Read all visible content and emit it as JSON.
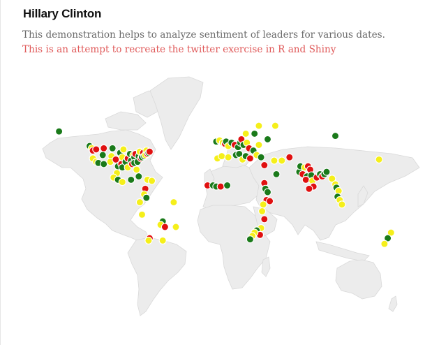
{
  "header": {
    "title": "Hillary Clinton",
    "description": "This demonstration helps to analyze sentiment of leaders for various dates.",
    "note": "This is an attempt to recreate the twitter exercise in R and Shiny"
  },
  "colors": {
    "positive": "#1a7a1a",
    "negative": "#e01010",
    "neutral": "#f5ef1a",
    "land": "#ececec",
    "note_text": "#e05a5a"
  },
  "map_data": {
    "projection": "equirectangular",
    "markers": [
      {
        "lon": -153,
        "lat": 62,
        "sentiment": "positive"
      },
      {
        "lon": -125,
        "lat": 49,
        "sentiment": "positive"
      },
      {
        "lon": -123,
        "lat": 47,
        "sentiment": "neutral"
      },
      {
        "lon": -122,
        "lat": 45,
        "sentiment": "negative"
      },
      {
        "lon": -119,
        "lat": 46,
        "sentiment": "negative"
      },
      {
        "lon": -122,
        "lat": 38,
        "sentiment": "neutral"
      },
      {
        "lon": -119,
        "lat": 35,
        "sentiment": "neutral"
      },
      {
        "lon": -117,
        "lat": 34,
        "sentiment": "positive"
      },
      {
        "lon": -113,
        "lat": 41,
        "sentiment": "positive"
      },
      {
        "lon": -112,
        "lat": 33,
        "sentiment": "positive"
      },
      {
        "lon": -112,
        "lat": 47,
        "sentiment": "negative"
      },
      {
        "lon": -105,
        "lat": 40,
        "sentiment": "neutral"
      },
      {
        "lon": -104,
        "lat": 47,
        "sentiment": "positive"
      },
      {
        "lon": -106,
        "lat": 35,
        "sentiment": "neutral"
      },
      {
        "lon": -101,
        "lat": 37,
        "sentiment": "negative"
      },
      {
        "lon": -99,
        "lat": 31,
        "sentiment": "positive"
      },
      {
        "lon": -97,
        "lat": 43,
        "sentiment": "positive"
      },
      {
        "lon": -95,
        "lat": 39,
        "sentiment": "neutral"
      },
      {
        "lon": -94,
        "lat": 46,
        "sentiment": "neutral"
      },
      {
        "lon": -96,
        "lat": 33,
        "sentiment": "negative"
      },
      {
        "lon": -95,
        "lat": 30,
        "sentiment": "positive"
      },
      {
        "lon": -92,
        "lat": 35,
        "sentiment": "positive"
      },
      {
        "lon": -90,
        "lat": 38,
        "sentiment": "negative"
      },
      {
        "lon": -90,
        "lat": 30,
        "sentiment": "neutral"
      },
      {
        "lon": -88,
        "lat": 42,
        "sentiment": "positive"
      },
      {
        "lon": -87,
        "lat": 36,
        "sentiment": "positive"
      },
      {
        "lon": -86,
        "lat": 33,
        "sentiment": "negative"
      },
      {
        "lon": -85,
        "lat": 41,
        "sentiment": "neutral"
      },
      {
        "lon": -84,
        "lat": 39,
        "sentiment": "positive"
      },
      {
        "lon": -84,
        "lat": 34,
        "sentiment": "positive"
      },
      {
        "lon": -83,
        "lat": 42,
        "sentiment": "negative"
      },
      {
        "lon": -82,
        "lat": 28,
        "sentiment": "neutral"
      },
      {
        "lon": -81,
        "lat": 35,
        "sentiment": "positive"
      },
      {
        "lon": -80,
        "lat": 40,
        "sentiment": "positive"
      },
      {
        "lon": -79,
        "lat": 44,
        "sentiment": "neutral"
      },
      {
        "lon": -78,
        "lat": 38,
        "sentiment": "negative"
      },
      {
        "lon": -77,
        "lat": 39,
        "sentiment": "positive"
      },
      {
        "lon": -76,
        "lat": 43,
        "sentiment": "negative"
      },
      {
        "lon": -75,
        "lat": 40,
        "sentiment": "positive"
      },
      {
        "lon": -74,
        "lat": 41,
        "sentiment": "neutral"
      },
      {
        "lon": -73,
        "lat": 45,
        "sentiment": "neutral"
      },
      {
        "lon": -72,
        "lat": 42,
        "sentiment": "negative"
      },
      {
        "lon": -71,
        "lat": 43,
        "sentiment": "positive"
      },
      {
        "lon": -70,
        "lat": 44,
        "sentiment": "negative"
      },
      {
        "lon": -100,
        "lat": 25,
        "sentiment": "neutral"
      },
      {
        "lon": -103,
        "lat": 21,
        "sentiment": "neutral"
      },
      {
        "lon": -99,
        "lat": 19,
        "sentiment": "positive"
      },
      {
        "lon": -95,
        "lat": 17,
        "sentiment": "neutral"
      },
      {
        "lon": -87,
        "lat": 19,
        "sentiment": "positive"
      },
      {
        "lon": -80,
        "lat": 22,
        "sentiment": "positive"
      },
      {
        "lon": -72,
        "lat": 19,
        "sentiment": "neutral"
      },
      {
        "lon": -68,
        "lat": 18,
        "sentiment": "neutral"
      },
      {
        "lon": -74,
        "lat": 11,
        "sentiment": "negative"
      },
      {
        "lon": -75,
        "lat": 6,
        "sentiment": "neutral"
      },
      {
        "lon": -73,
        "lat": 3,
        "sentiment": "positive"
      },
      {
        "lon": -79,
        "lat": -1,
        "sentiment": "neutral"
      },
      {
        "lon": -77,
        "lat": -12,
        "sentiment": "neutral"
      },
      {
        "lon": -48,
        "lat": -1,
        "sentiment": "neutral"
      },
      {
        "lon": -58,
        "lat": -18,
        "sentiment": "positive"
      },
      {
        "lon": -60,
        "lat": -21,
        "sentiment": "neutral"
      },
      {
        "lon": -56,
        "lat": -23,
        "sentiment": "negative"
      },
      {
        "lon": -46,
        "lat": -23,
        "sentiment": "neutral"
      },
      {
        "lon": -70,
        "lat": -33,
        "sentiment": "negative"
      },
      {
        "lon": -71,
        "lat": -35,
        "sentiment": "neutral"
      },
      {
        "lon": -58,
        "lat": -35,
        "sentiment": "neutral"
      },
      {
        "lon": -9,
        "lat": 53,
        "sentiment": "positive"
      },
      {
        "lon": -6,
        "lat": 54,
        "sentiment": "neutral"
      },
      {
        "lon": -3,
        "lat": 52,
        "sentiment": "neutral"
      },
      {
        "lon": -1,
        "lat": 51,
        "sentiment": "negative"
      },
      {
        "lon": 0,
        "lat": 53,
        "sentiment": "positive"
      },
      {
        "lon": 2,
        "lat": 49,
        "sentiment": "neutral"
      },
      {
        "lon": 5,
        "lat": 52,
        "sentiment": "positive"
      },
      {
        "lon": 8,
        "lat": 50,
        "sentiment": "negative"
      },
      {
        "lon": 11,
        "lat": 48,
        "sentiment": "positive"
      },
      {
        "lon": 13,
        "lat": 52,
        "sentiment": "positive"
      },
      {
        "lon": 14,
        "lat": 55,
        "sentiment": "negative"
      },
      {
        "lon": 16,
        "lat": 50,
        "sentiment": "positive"
      },
      {
        "lon": 19,
        "lat": 52,
        "sentiment": "neutral"
      },
      {
        "lon": 21,
        "lat": 47,
        "sentiment": "negative"
      },
      {
        "lon": 25,
        "lat": 45,
        "sentiment": "positive"
      },
      {
        "lon": 18,
        "lat": 60,
        "sentiment": "neutral"
      },
      {
        "lon": 26,
        "lat": 60,
        "sentiment": "positive"
      },
      {
        "lon": 30,
        "lat": 67,
        "sentiment": "neutral"
      },
      {
        "lon": 38,
        "lat": 55,
        "sentiment": "positive"
      },
      {
        "lon": 45,
        "lat": 67,
        "sentiment": "neutral"
      },
      {
        "lon": 30,
        "lat": 50,
        "sentiment": "neutral"
      },
      {
        "lon": 100,
        "lat": 58,
        "sentiment": "positive"
      },
      {
        "lon": -8,
        "lat": 38,
        "sentiment": "neutral"
      },
      {
        "lon": -4,
        "lat": 40,
        "sentiment": "neutral"
      },
      {
        "lon": 2,
        "lat": 39,
        "sentiment": "neutral"
      },
      {
        "lon": 9,
        "lat": 41,
        "sentiment": "positive"
      },
      {
        "lon": 12,
        "lat": 42,
        "sentiment": "positive"
      },
      {
        "lon": 15,
        "lat": 37,
        "sentiment": "neutral"
      },
      {
        "lon": 18,
        "lat": 40,
        "sentiment": "positive"
      },
      {
        "lon": 22,
        "lat": 38,
        "sentiment": "negative"
      },
      {
        "lon": 28,
        "lat": 41,
        "sentiment": "neutral"
      },
      {
        "lon": 32,
        "lat": 39,
        "sentiment": "positive"
      },
      {
        "lon": 35,
        "lat": 32,
        "sentiment": "negative"
      },
      {
        "lon": 44,
        "lat": 36,
        "sentiment": "neutral"
      },
      {
        "lon": 51,
        "lat": 36,
        "sentiment": "neutral"
      },
      {
        "lon": 58,
        "lat": 39,
        "sentiment": "negative"
      },
      {
        "lon": 46,
        "lat": 24,
        "sentiment": "positive"
      },
      {
        "lon": 35,
        "lat": 16,
        "sentiment": "negative"
      },
      {
        "lon": 36,
        "lat": 11,
        "sentiment": "positive"
      },
      {
        "lon": 38,
        "lat": 8,
        "sentiment": "positive"
      },
      {
        "lon": 37,
        "lat": 1,
        "sentiment": "negative"
      },
      {
        "lon": 40,
        "lat": 0,
        "sentiment": "negative"
      },
      {
        "lon": 34,
        "lat": -3,
        "sentiment": "neutral"
      },
      {
        "lon": 33,
        "lat": -9,
        "sentiment": "neutral"
      },
      {
        "lon": 35,
        "lat": -16,
        "sentiment": "negative"
      },
      {
        "lon": 32,
        "lat": -24,
        "sentiment": "neutral"
      },
      {
        "lon": 28,
        "lat": -26,
        "sentiment": "positive"
      },
      {
        "lon": 31,
        "lat": -30,
        "sentiment": "negative"
      },
      {
        "lon": 26,
        "lat": -28,
        "sentiment": "neutral"
      },
      {
        "lon": 24,
        "lat": -31,
        "sentiment": "neutral"
      },
      {
        "lon": 22,
        "lat": -34,
        "sentiment": "positive"
      },
      {
        "lon": -17,
        "lat": 14,
        "sentiment": "negative"
      },
      {
        "lon": -12,
        "lat": 14,
        "sentiment": "positive"
      },
      {
        "lon": -9,
        "lat": 13,
        "sentiment": "positive"
      },
      {
        "lon": -5,
        "lat": 13,
        "sentiment": "negative"
      },
      {
        "lon": 1,
        "lat": 14,
        "sentiment": "positive"
      },
      {
        "lon": 67,
        "lat": 26,
        "sentiment": "positive"
      },
      {
        "lon": 68,
        "lat": 31,
        "sentiment": "positive"
      },
      {
        "lon": 70,
        "lat": 24,
        "sentiment": "negative"
      },
      {
        "lon": 72,
        "lat": 30,
        "sentiment": "neutral"
      },
      {
        "lon": 74,
        "lat": 22,
        "sentiment": "positive"
      },
      {
        "lon": 75,
        "lat": 31,
        "sentiment": "negative"
      },
      {
        "lon": 73,
        "lat": 19,
        "sentiment": "negative"
      },
      {
        "lon": 77,
        "lat": 28,
        "sentiment": "negative"
      },
      {
        "lon": 78,
        "lat": 23,
        "sentiment": "positive"
      },
      {
        "lon": 79,
        "lat": 18,
        "sentiment": "neutral"
      },
      {
        "lon": 80,
        "lat": 13,
        "sentiment": "negative"
      },
      {
        "lon": 76,
        "lat": 11,
        "sentiment": "negative"
      },
      {
        "lon": 83,
        "lat": 21,
        "sentiment": "negative"
      },
      {
        "lon": 86,
        "lat": 24,
        "sentiment": "positive"
      },
      {
        "lon": 88,
        "lat": 22,
        "sentiment": "negative"
      },
      {
        "lon": 90,
        "lat": 24,
        "sentiment": "positive"
      },
      {
        "lon": 92,
        "lat": 26,
        "sentiment": "positive"
      },
      {
        "lon": 97,
        "lat": 20,
        "sentiment": "neutral"
      },
      {
        "lon": 100,
        "lat": 15,
        "sentiment": "neutral"
      },
      {
        "lon": 101,
        "lat": 12,
        "sentiment": "positive"
      },
      {
        "lon": 103,
        "lat": 9,
        "sentiment": "neutral"
      },
      {
        "lon": 102,
        "lat": 4,
        "sentiment": "positive"
      },
      {
        "lon": 104,
        "lat": 1,
        "sentiment": "neutral"
      },
      {
        "lon": 106,
        "lat": -3,
        "sentiment": "neutral"
      },
      {
        "lon": 140,
        "lat": 37,
        "sentiment": "neutral"
      },
      {
        "lon": 151,
        "lat": -28,
        "sentiment": "neutral"
      },
      {
        "lon": 148,
        "lat": -33,
        "sentiment": "positive"
      },
      {
        "lon": 145,
        "lat": -38,
        "sentiment": "neutral"
      }
    ]
  }
}
